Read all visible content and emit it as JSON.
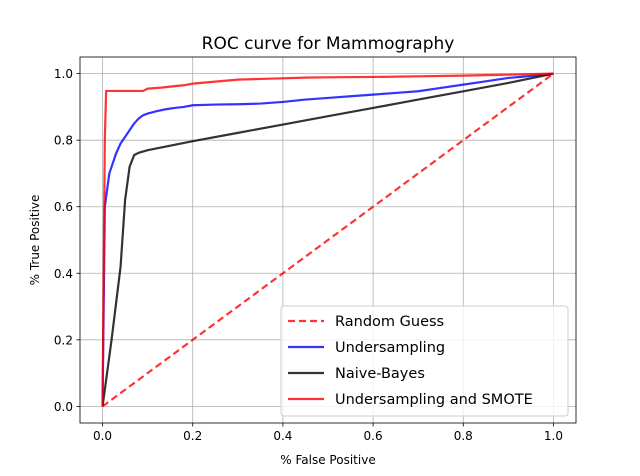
{
  "chart_data": {
    "type": "line",
    "title": "ROC curve for Mammography",
    "xlabel": "% False Positive",
    "ylabel": "% True Positive",
    "xlim": [
      -0.05,
      1.05
    ],
    "ylim": [
      -0.05,
      1.05
    ],
    "grid": true,
    "legend_position": "lower-right",
    "x_ticks": [
      "0.0",
      "0.2",
      "0.4",
      "0.6",
      "0.8",
      "1.0"
    ],
    "y_ticks": [
      "0.0",
      "0.2",
      "0.4",
      "0.6",
      "0.8",
      "1.0"
    ],
    "series": [
      {
        "name": "Random Guess",
        "color": "#ff0000",
        "style": "dashed",
        "x": [
          0.0,
          1.0
        ],
        "y": [
          0.0,
          1.0
        ]
      },
      {
        "name": "Undersampling",
        "color": "#0000ff",
        "style": "solid",
        "x": [
          0.0,
          0.005,
          0.01,
          0.015,
          0.02,
          0.03,
          0.04,
          0.05,
          0.06,
          0.07,
          0.08,
          0.09,
          0.1,
          0.12,
          0.14,
          0.16,
          0.18,
          0.2,
          0.25,
          0.3,
          0.35,
          0.4,
          0.45,
          0.5,
          0.55,
          0.6,
          0.65,
          0.7,
          0.75,
          0.8,
          0.85,
          0.9,
          0.95,
          1.0
        ],
        "y": [
          0.0,
          0.6,
          0.65,
          0.7,
          0.72,
          0.76,
          0.79,
          0.81,
          0.83,
          0.85,
          0.865,
          0.875,
          0.88,
          0.887,
          0.893,
          0.897,
          0.9,
          0.905,
          0.907,
          0.908,
          0.91,
          0.915,
          0.922,
          0.927,
          0.932,
          0.937,
          0.942,
          0.947,
          0.957,
          0.967,
          0.977,
          0.987,
          0.993,
          1.0
        ]
      },
      {
        "name": "Naive-Bayes",
        "color": "#000000",
        "style": "solid",
        "x": [
          0.0,
          0.02,
          0.04,
          0.05,
          0.06,
          0.07,
          0.08,
          0.1,
          0.2,
          0.3,
          0.4,
          0.5,
          0.6,
          0.7,
          0.8,
          0.9,
          1.0
        ],
        "y": [
          0.0,
          0.2,
          0.42,
          0.62,
          0.72,
          0.755,
          0.762,
          0.77,
          0.797,
          0.822,
          0.847,
          0.872,
          0.897,
          0.922,
          0.947,
          0.972,
          1.0
        ]
      },
      {
        "name": "Undersampling and SMOTE",
        "color": "#ff0000",
        "style": "solid",
        "x": [
          0.0,
          0.005,
          0.008,
          0.012,
          0.05,
          0.09,
          0.1,
          0.13,
          0.15,
          0.18,
          0.2,
          0.25,
          0.3,
          0.35,
          0.4,
          0.45,
          0.5,
          0.6,
          0.7,
          0.8,
          0.9,
          1.0
        ],
        "y": [
          0.0,
          0.8,
          0.948,
          0.948,
          0.948,
          0.948,
          0.955,
          0.958,
          0.961,
          0.965,
          0.97,
          0.976,
          0.982,
          0.984,
          0.986,
          0.988,
          0.989,
          0.99,
          0.992,
          0.994,
          0.997,
          1.0
        ]
      }
    ]
  }
}
